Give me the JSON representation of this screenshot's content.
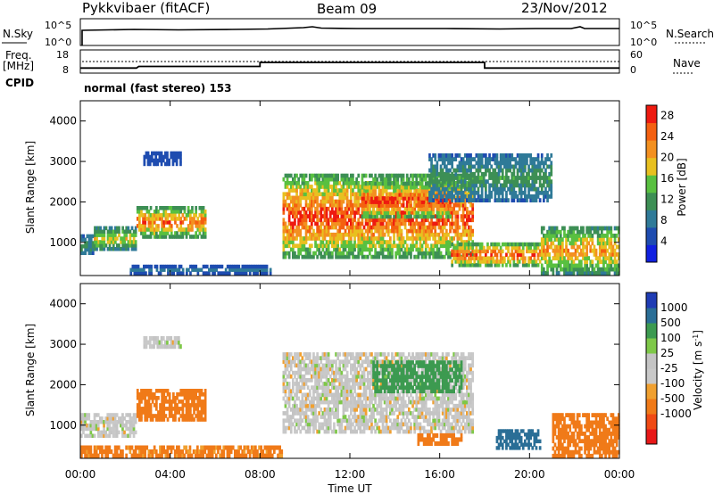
{
  "header": {
    "radar": "Pykkvibaer (fitACF)",
    "beam": "Beam 09",
    "date": "23/Nov/2012"
  },
  "sky_panel": {
    "left_label": "N.Sky",
    "right_label": "N.Search",
    "left_ticks": [
      "10^5",
      "10^0"
    ],
    "right_ticks": [
      "10^5",
      "10^0"
    ]
  },
  "freq_panel": {
    "left_label_1": "Freq.",
    "left_label_2": "[MHz]",
    "right_label": "Nave",
    "left_ticks": [
      "18",
      "8"
    ],
    "right_ticks": [
      "60",
      "0"
    ]
  },
  "cpid": {
    "label": "CPID",
    "text": "normal (fast stereo) 153"
  },
  "colors": {
    "power_scale": [
      "#1020e0",
      "#1e4cb0",
      "#2f7a98",
      "#3d8f55",
      "#59c040",
      "#e8c020",
      "#f39020",
      "#f46010",
      "#ee1a10"
    ],
    "velocity_scale": [
      "#e81818",
      "#f04a14",
      "#f07a18",
      "#f0a030",
      "#c9c9c9",
      "#c4c4c4",
      "#7ec848",
      "#3c9a50",
      "#2a6e96",
      "#1f3cb4"
    ]
  },
  "chart_data": [
    {
      "type": "heatmap",
      "panel": "power",
      "ylabel": "Slant Range [km]",
      "ylim": [
        180,
        4500
      ],
      "y_ticks": [
        "1000",
        "2000",
        "3000",
        "4000"
      ],
      "xlim_hours": [
        0,
        24
      ],
      "colorbar": {
        "label": "Power [dB]",
        "ticks": [
          "4",
          "8",
          "12",
          "16",
          "20",
          "24",
          "28"
        ],
        "range": [
          0,
          30
        ]
      },
      "echo_regions": [
        {
          "t0": 0.0,
          "t1": 0.6,
          "r0": 700,
          "r1": 1200,
          "peak": 12
        },
        {
          "t0": 0.6,
          "t1": 2.5,
          "r0": 800,
          "r1": 1400,
          "peak": 18
        },
        {
          "t0": 2.5,
          "t1": 5.6,
          "r0": 1100,
          "r1": 1900,
          "peak": 24
        },
        {
          "t0": 2.8,
          "t1": 4.5,
          "r0": 2900,
          "r1": 3250,
          "peak": 6
        },
        {
          "t0": 2.2,
          "t1": 8.5,
          "r0": 200,
          "r1": 450,
          "peak": 8
        },
        {
          "t0": 9.0,
          "t1": 17.5,
          "r0": 600,
          "r1": 2700,
          "peak": 27
        },
        {
          "t0": 12.5,
          "t1": 16.5,
          "r0": 1600,
          "r1": 2500,
          "peak": 28
        },
        {
          "t0": 15.5,
          "t1": 21.0,
          "r0": 2000,
          "r1": 3200,
          "peak": 12
        },
        {
          "t0": 16.5,
          "t1": 20.5,
          "r0": 400,
          "r1": 1000,
          "peak": 26
        },
        {
          "t0": 20.5,
          "t1": 24.0,
          "r0": 200,
          "r1": 1400,
          "peak": 22
        }
      ]
    },
    {
      "type": "heatmap",
      "panel": "velocity",
      "ylabel": "Slant Range [km]",
      "xlabel": "Time UT",
      "ylim": [
        180,
        4500
      ],
      "y_ticks": [
        "1000",
        "2000",
        "3000",
        "4000"
      ],
      "x_ticks": [
        "00:00",
        "04:00",
        "08:00",
        "12:00",
        "16:00",
        "20:00",
        "00:00"
      ],
      "xlim_hours": [
        0,
        24
      ],
      "colorbar": {
        "label": "Velocity [m s^-1]",
        "ticks": [
          "1000",
          "500",
          "100",
          "25",
          "-25",
          "-100",
          "-500",
          "-1000"
        ]
      },
      "echo_regions": [
        {
          "t0": 0.0,
          "t1": 2.5,
          "r0": 700,
          "r1": 1300,
          "velocity": 0
        },
        {
          "t0": 2.5,
          "t1": 5.6,
          "r0": 1100,
          "r1": 1900,
          "velocity": -400
        },
        {
          "t0": 2.8,
          "t1": 4.5,
          "r0": 2900,
          "r1": 3200,
          "velocity": 0
        },
        {
          "t0": 0.0,
          "t1": 9.0,
          "r0": 200,
          "r1": 500,
          "velocity": -120
        },
        {
          "t0": 9.0,
          "t1": 17.5,
          "r0": 800,
          "r1": 2800,
          "velocity": 0
        },
        {
          "t0": 13.0,
          "t1": 17.0,
          "r0": 1800,
          "r1": 2600,
          "velocity": 200
        },
        {
          "t0": 15.0,
          "t1": 17.0,
          "r0": 500,
          "r1": 800,
          "velocity": -150
        },
        {
          "t0": 18.5,
          "t1": 20.5,
          "r0": 400,
          "r1": 900,
          "velocity": 600
        },
        {
          "t0": 21.0,
          "t1": 24.0,
          "r0": 200,
          "r1": 1300,
          "velocity": -300
        }
      ]
    },
    {
      "type": "line",
      "panel": "frequency",
      "xlim_hours": [
        0,
        24
      ],
      "series": [
        {
          "x": [
            0,
            2.5,
            2.6,
            2.9,
            8.0,
            8.0,
            18.0,
            18.0,
            24
          ],
          "y": [
            10.2,
            10.2,
            10.9,
            10.9,
            10.9,
            12.6,
            12.6,
            10.2,
            10.2
          ]
        }
      ]
    }
  ]
}
